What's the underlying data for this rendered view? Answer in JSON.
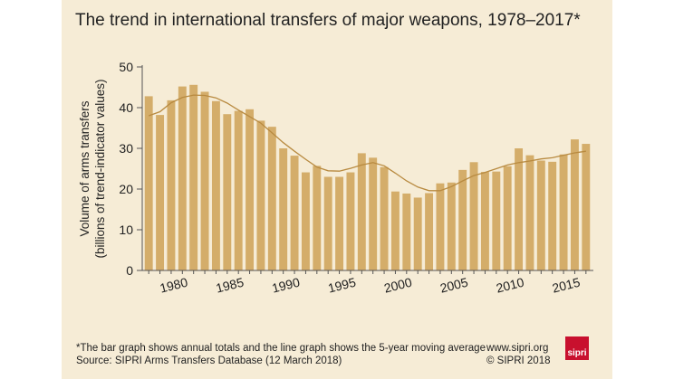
{
  "header": {
    "title": "The trend in international transfers of major weapons, 1978–2017*"
  },
  "footer": {
    "note": "*The bar graph shows annual totals and the line graph shows the 5-year moving average",
    "source": "Source: SIPRI Arms Transfers Database (12 March 2018)",
    "website": "www.sipri.org",
    "copyright": "© SIPRI 2018",
    "logo_text": "sipri"
  },
  "colors": {
    "background": "#f6ecd6",
    "bar": "#d4ad6a",
    "line": "#b88a40",
    "axis": "#555555",
    "logo": "#c8102e"
  },
  "chart_data": {
    "type": "bar",
    "ylabel_lines": [
      "Volume of arms transfers",
      "(billions of trend-indicator values)"
    ],
    "xlabel": "",
    "ylim": [
      0,
      50
    ],
    "yticks": [
      0,
      10,
      20,
      30,
      40,
      50
    ],
    "xtick_labels": [
      "1980",
      "1985",
      "1990",
      "1995",
      "2000",
      "2005",
      "2010",
      "2015"
    ],
    "grid": false,
    "x": [
      1978,
      1979,
      1980,
      1981,
      1982,
      1983,
      1984,
      1985,
      1986,
      1987,
      1988,
      1989,
      1990,
      1991,
      1992,
      1993,
      1994,
      1995,
      1996,
      1997,
      1998,
      1999,
      2000,
      2001,
      2002,
      2003,
      2004,
      2005,
      2006,
      2007,
      2008,
      2009,
      2010,
      2011,
      2012,
      2013,
      2014,
      2015,
      2016,
      2017
    ],
    "series": [
      {
        "type": "bar",
        "values": [
          42.8,
          38.2,
          41.8,
          45.2,
          45.6,
          43.9,
          41.6,
          38.4,
          39.2,
          39.6,
          36.8,
          35.3,
          30.0,
          28.2,
          24.1,
          25.7,
          23.0,
          23.0,
          24.1,
          28.8,
          27.7,
          25.4,
          19.4,
          18.9,
          17.9,
          19.0,
          21.4,
          21.6,
          24.7,
          26.6,
          24.2,
          24.3,
          25.6,
          30.0,
          28.3,
          27.0,
          26.7,
          28.5,
          32.2,
          31.1
        ]
      },
      {
        "type": "line",
        "values": [
          38.0,
          39.0,
          41.2,
          42.5,
          43.1,
          43.0,
          42.4,
          41.1,
          39.4,
          37.8,
          36.2,
          33.8,
          31.4,
          29.3,
          27.3,
          25.4,
          24.5,
          24.4,
          25.1,
          25.9,
          26.5,
          25.7,
          23.9,
          22.0,
          20.5,
          19.6,
          19.6,
          20.6,
          22.0,
          23.3,
          24.1,
          25.0,
          25.9,
          26.5,
          26.9,
          27.4,
          27.7,
          28.3,
          28.9,
          29.3
        ]
      }
    ]
  }
}
